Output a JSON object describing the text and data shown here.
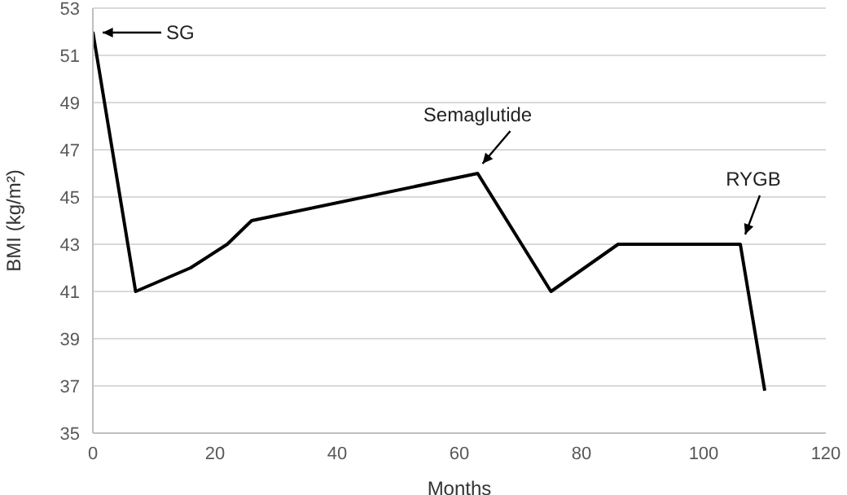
{
  "chart_data": {
    "type": "line",
    "xlabel": "Months",
    "ylabel": "BMI (kg/m²)",
    "x": [
      0,
      7,
      16,
      22,
      26,
      63,
      75,
      86,
      106,
      110
    ],
    "series": [
      {
        "color": "#000000",
        "values": [
          52,
          41,
          42,
          43,
          44,
          46,
          41,
          43,
          43,
          36.8
        ]
      }
    ],
    "xlim": [
      0,
      120
    ],
    "xticks": [
      0,
      20,
      40,
      60,
      80,
      100,
      120
    ],
    "ylim": [
      35,
      53
    ],
    "yticks": [
      35,
      37,
      39,
      41,
      43,
      45,
      47,
      49,
      51,
      53
    ],
    "grid": "y",
    "marker": "none",
    "line_style": "solid",
    "annotations": [
      "SG",
      {
        "text": "Semaglutide",
        "x": 63,
        "y": 46
      },
      {
        "text": "RYGB",
        "x": 106,
        "y": 43
      }
    ]
  }
}
